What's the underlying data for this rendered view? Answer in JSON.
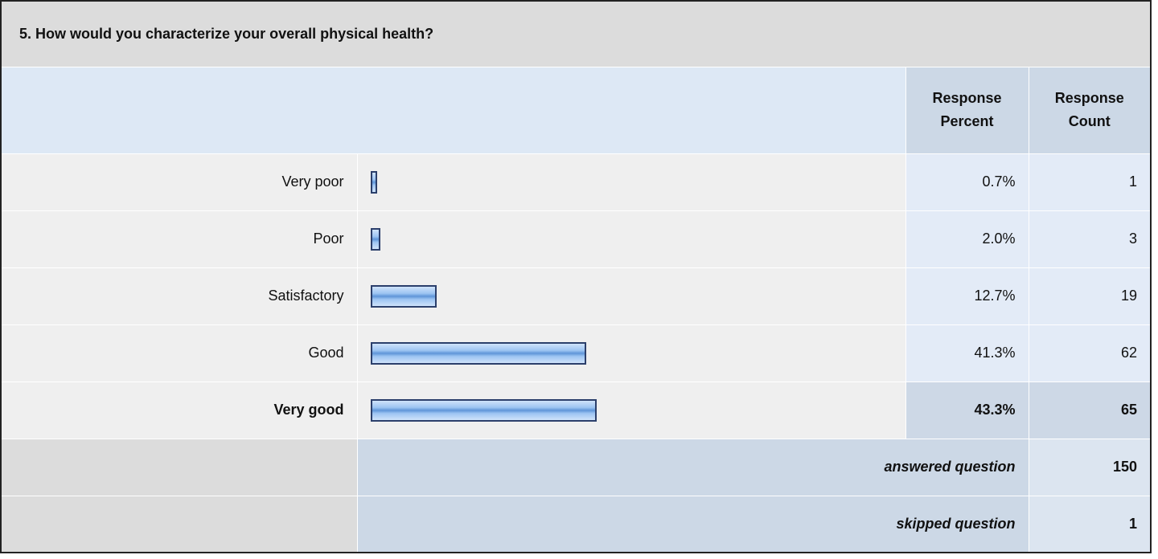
{
  "question": "5. How would you characterize your overall physical health?",
  "headers": {
    "percent": "Response Percent",
    "count": "Response Count"
  },
  "xlim": [
    0,
    100
  ],
  "rows": [
    {
      "label": "Very poor",
      "percent": {
        "value": 0.7,
        "label": "0.7%"
      },
      "count": 1,
      "highlight": false
    },
    {
      "label": "Poor",
      "percent": {
        "value": 2.0,
        "label": "2.0%"
      },
      "count": 3,
      "highlight": false
    },
    {
      "label": "Satisfactory",
      "percent": {
        "value": 12.7,
        "label": "12.7%"
      },
      "count": 19,
      "highlight": false
    },
    {
      "label": "Good",
      "percent": {
        "value": 41.3,
        "label": "41.3%"
      },
      "count": 62,
      "highlight": false
    },
    {
      "label": "Very good",
      "percent": {
        "value": 43.3,
        "label": "43.3%"
      },
      "count": 65,
      "highlight": true
    }
  ],
  "footer": [
    {
      "label": "answered question",
      "count": 150
    },
    {
      "label": "skipped question",
      "count": 1
    }
  ]
}
